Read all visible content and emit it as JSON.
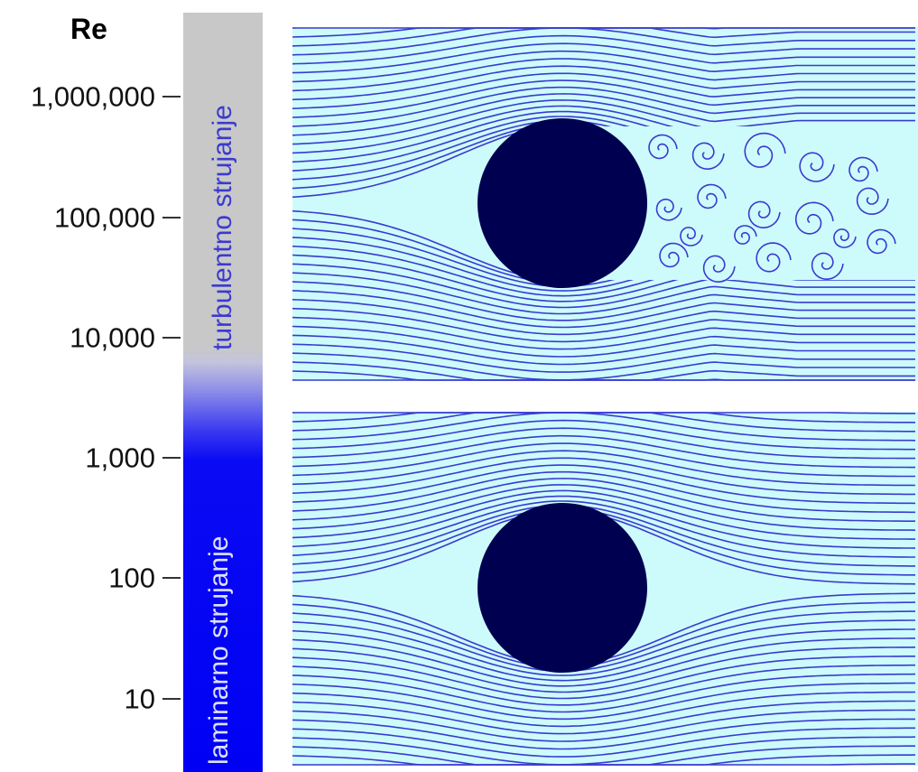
{
  "scale": {
    "title": "Re",
    "ticks": [
      {
        "label": "1,000,000",
        "value": 1000000
      },
      {
        "label": "100,000",
        "value": 100000
      },
      {
        "label": "10,000",
        "value": 10000
      },
      {
        "label": "1,000",
        "value": 1000
      },
      {
        "label": "100",
        "value": 100
      },
      {
        "label": "10",
        "value": 10
      }
    ]
  },
  "regimes": {
    "turbulent": "turbulentno strujanje",
    "laminar": "laminarno strujanje"
  },
  "colors": {
    "bar_turbulent": "#c8c8c8",
    "bar_laminar": "#0000f5",
    "flow_background": "#cdfbfb",
    "streamline": "#3a3ad0",
    "cylinder": "#000050"
  }
}
